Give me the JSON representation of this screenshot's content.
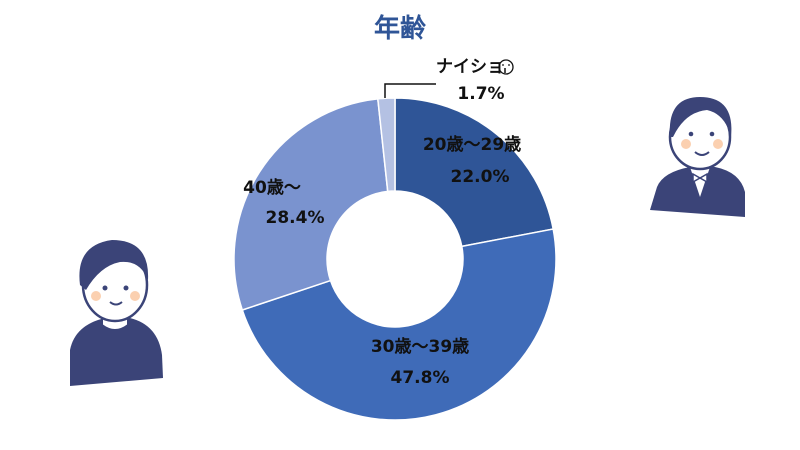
{
  "chart_data": {
    "type": "pie",
    "variant": "donut",
    "title": "年齢",
    "categories": [
      "20歳～29歳",
      "30歳～39歳",
      "40歳～",
      "ナイショ"
    ],
    "values": [
      22.0,
      47.8,
      28.4,
      1.7
    ],
    "value_labels": [
      "22.0%",
      "47.8%",
      "28.4%",
      "1.7%"
    ],
    "colors": [
      "#2f5597",
      "#3f6bb8",
      "#7a93cf",
      "#b4c1e3"
    ],
    "start_angle": "top",
    "direction": "clockwise",
    "legend": "none",
    "icon_after_last_label": "shushing-face-icon"
  },
  "decorations": {
    "left_person": "person-illustration",
    "right_person": "person-in-suit-illustration",
    "person_color": "#3b4478"
  }
}
